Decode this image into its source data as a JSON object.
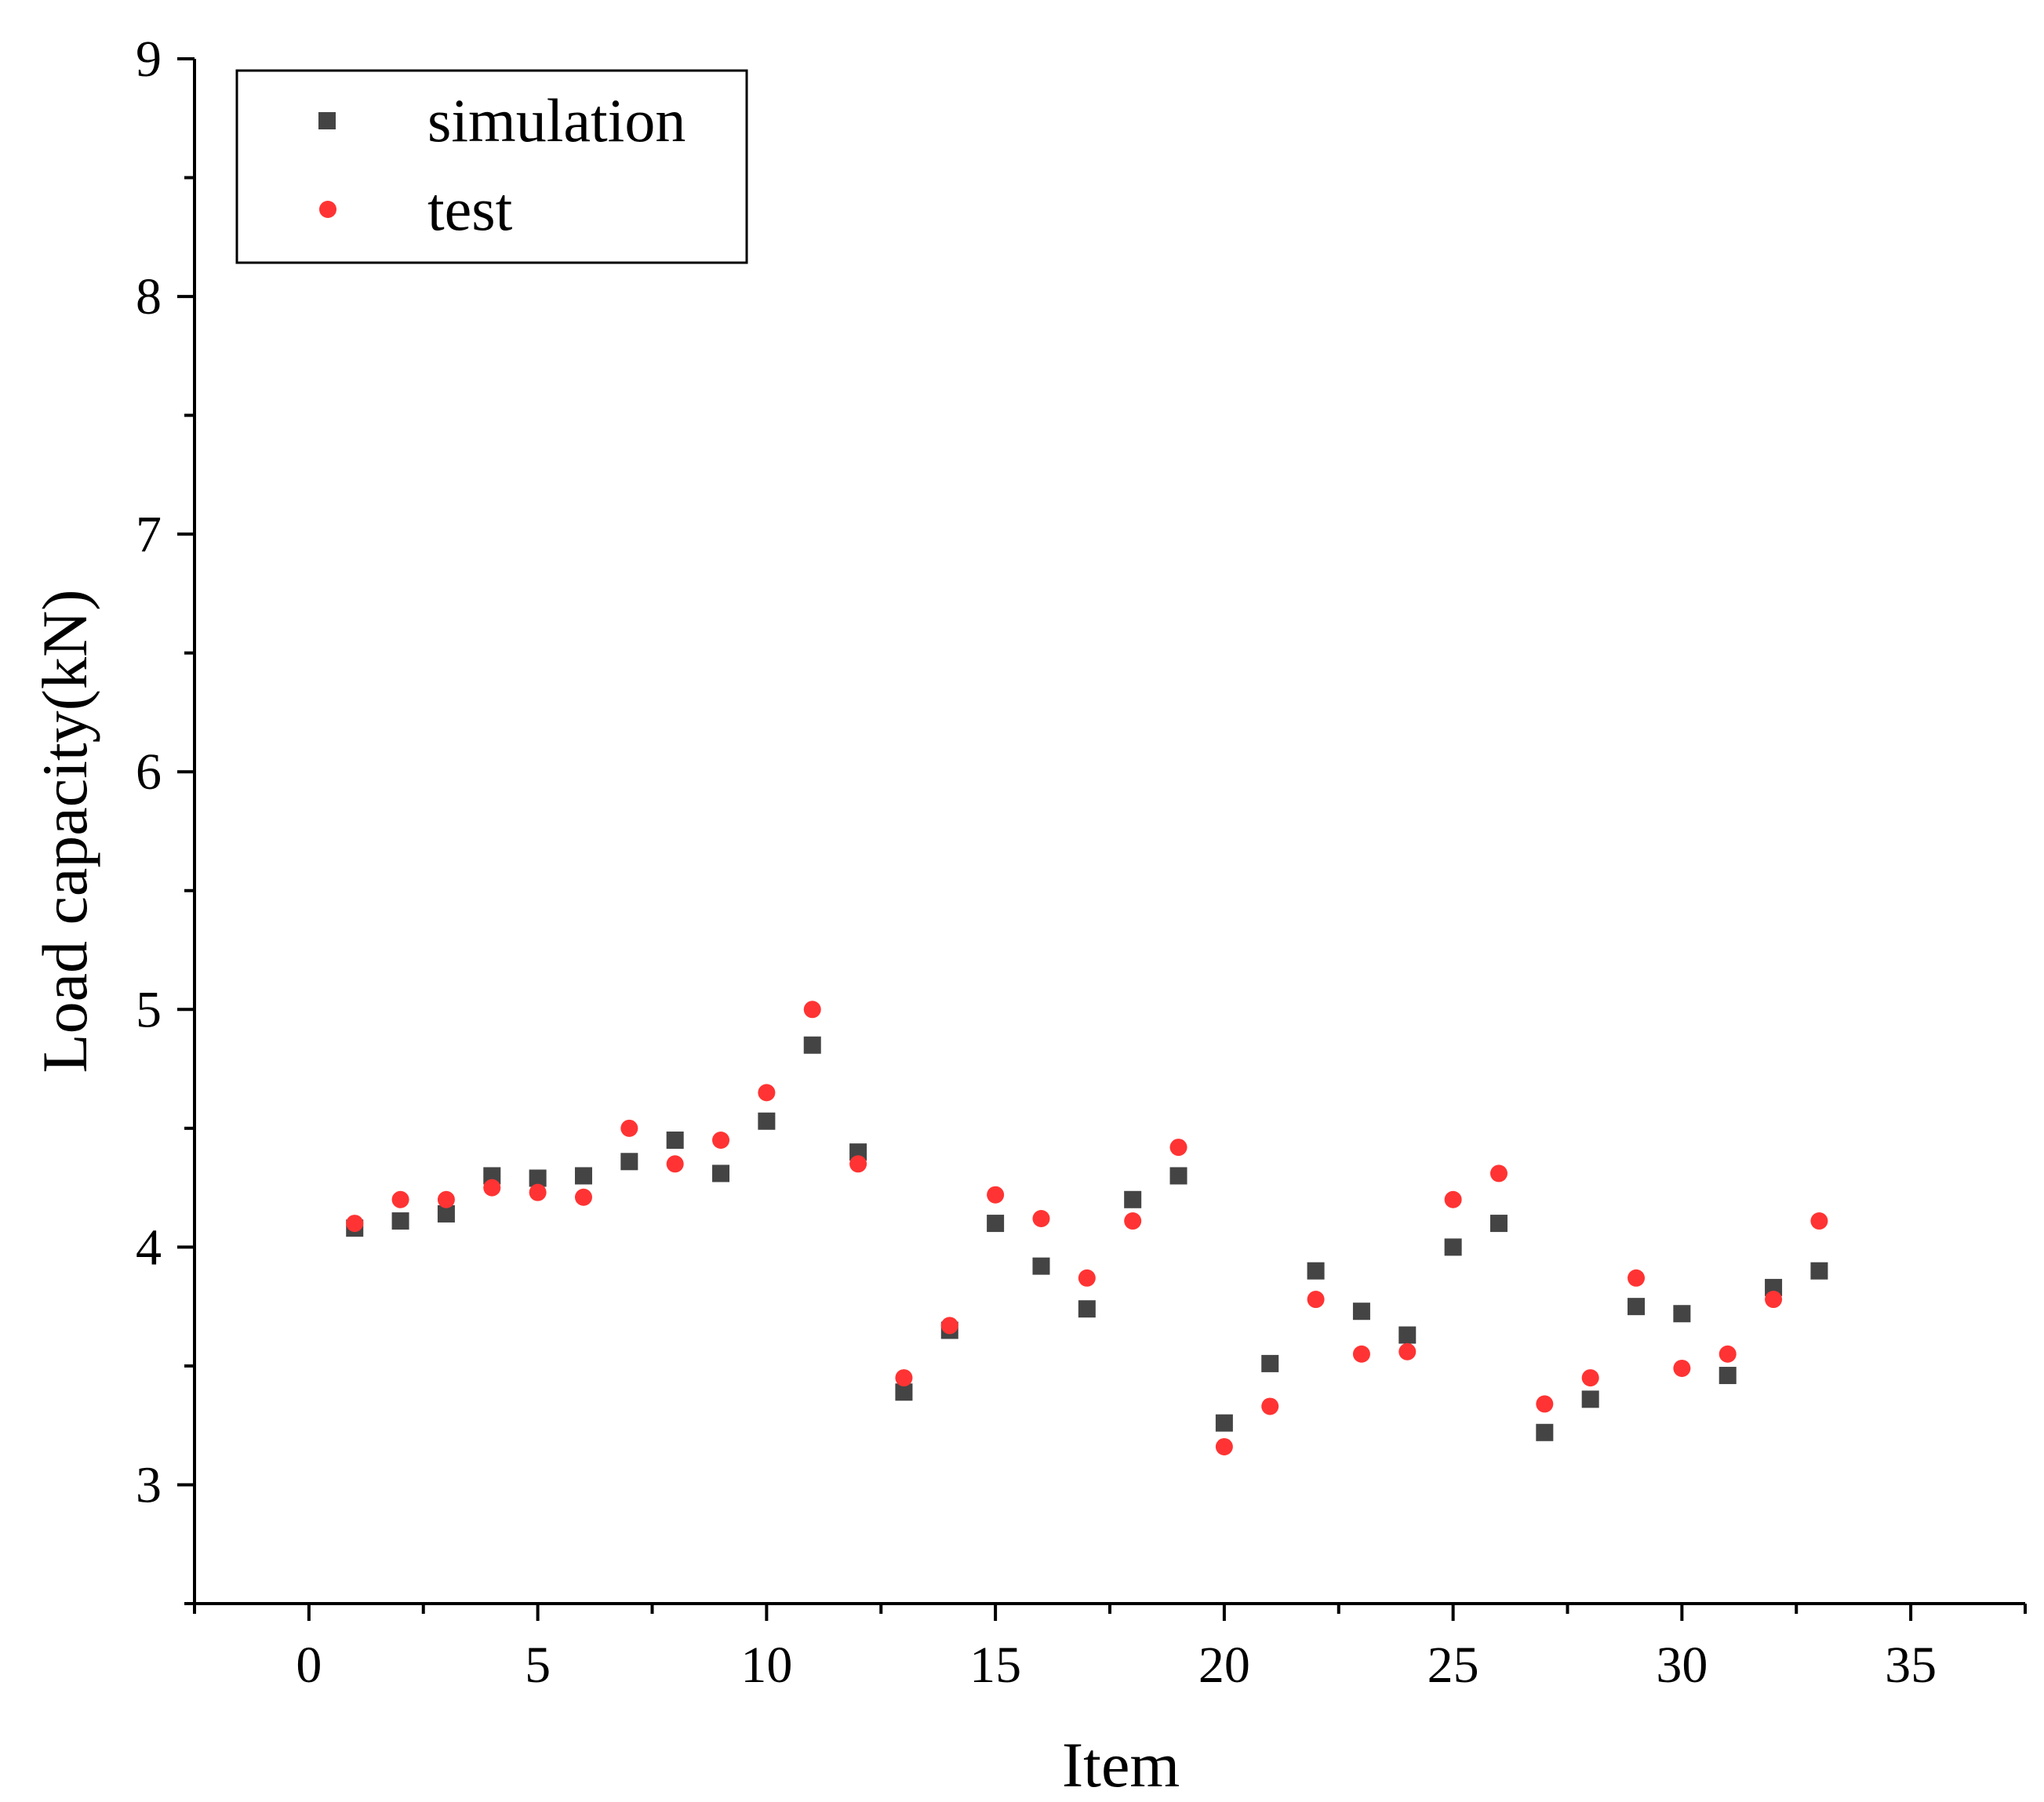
{
  "chart_data": {
    "type": "scatter",
    "title": "",
    "xlabel": "Item",
    "ylabel": "Load capacity(kN)",
    "xlim": [
      -2.5,
      37.5
    ],
    "ylim": [
      2.5,
      9
    ],
    "x_ticks": [
      0,
      5,
      10,
      15,
      20,
      25,
      30,
      35
    ],
    "x_tick_labels": [
      "0",
      "5",
      "10",
      "15",
      "20",
      "25",
      "30",
      "35"
    ],
    "y_ticks": [
      3,
      4,
      5,
      6,
      7,
      8,
      9
    ],
    "y_tick_labels": [
      "3",
      "4",
      "5",
      "6",
      "7",
      "8",
      "9"
    ],
    "grid": false,
    "legend_position": "top-left",
    "x": [
      1,
      2,
      3,
      4,
      5,
      6,
      7,
      8,
      9,
      10,
      11,
      12,
      13,
      14,
      15,
      16,
      17,
      18,
      19,
      20,
      21,
      22,
      23,
      24,
      25,
      26,
      27,
      28,
      29,
      30,
      31,
      32,
      33
    ],
    "series": [
      {
        "name": "simulation",
        "marker": "square",
        "color": "#444444",
        "values": [
          4.08,
          4.11,
          4.14,
          4.3,
          4.29,
          4.3,
          4.36,
          4.45,
          4.31,
          4.53,
          4.85,
          4.4,
          3.39,
          3.65,
          4.1,
          3.92,
          3.74,
          4.2,
          4.3,
          3.26,
          3.51,
          3.9,
          3.73,
          3.63,
          4.0,
          4.1,
          3.22,
          3.36,
          3.75,
          3.72,
          3.46,
          3.83,
          3.9
        ]
      },
      {
        "name": "test",
        "marker": "circle",
        "color": "#ff3333",
        "values": [
          4.1,
          4.2,
          4.2,
          4.25,
          4.23,
          4.21,
          4.5,
          4.35,
          4.45,
          4.65,
          5.0,
          4.35,
          3.45,
          3.67,
          4.22,
          4.12,
          3.87,
          4.11,
          4.42,
          3.16,
          3.33,
          3.78,
          3.55,
          3.56,
          4.2,
          4.31,
          3.34,
          3.45,
          3.87,
          3.49,
          3.55,
          3.78,
          4.11
        ]
      }
    ]
  }
}
